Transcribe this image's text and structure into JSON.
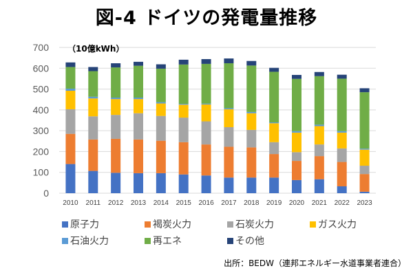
{
  "title": "図-4 ドイツの発電量推移",
  "source": "出所：BEDW（連邦エネルギー水道事業者連合）",
  "chart_data": {
    "type": "bar",
    "stacked": true,
    "title": "図-4 ドイツの発電量推移",
    "unit_label": "（10億kWh）",
    "xlabel": "",
    "ylabel": "（10億kWh）",
    "ylim": [
      0,
      700
    ],
    "yticks": [
      0,
      100,
      200,
      300,
      400,
      500,
      600,
      700
    ],
    "grid": true,
    "legend_position": "bottom",
    "categories": [
      "2010",
      "2011",
      "2012",
      "2013",
      "2014",
      "2015",
      "2016",
      "2017",
      "2018",
      "2019",
      "2020",
      "2021",
      "2022",
      "2023"
    ],
    "series": [
      {
        "name": "原子力",
        "color": "#4472C4",
        "values": [
          140,
          107,
          98,
          96,
          96,
          90,
          85,
          75,
          75,
          75,
          63,
          67,
          33,
          7
        ]
      },
      {
        "name": "褐炭火力",
        "color": "#ED7D31",
        "values": [
          145,
          151,
          163,
          162,
          156,
          155,
          149,
          148,
          145,
          113,
          92,
          111,
          117,
          85
        ]
      },
      {
        "name": "石炭火力",
        "color": "#A5A5A5",
        "values": [
          118,
          111,
          115,
          126,
          119,
          118,
          111,
          94,
          84,
          57,
          42,
          56,
          65,
          40
        ]
      },
      {
        "name": "ガス火力",
        "color": "#FFC000",
        "values": [
          89,
          86,
          76,
          68,
          60,
          62,
          81,
          86,
          80,
          91,
          94,
          88,
          76,
          77
        ]
      },
      {
        "name": "石油火力",
        "color": "#5B9BD5",
        "values": [
          10,
          8,
          7,
          7,
          6,
          4,
          4,
          5,
          6,
          4,
          7,
          7,
          7,
          5
        ]
      },
      {
        "name": "再エネ",
        "color": "#70AD47",
        "values": [
          104,
          123,
          145,
          153,
          161,
          189,
          191,
          216,
          223,
          243,
          251,
          233,
          252,
          271
        ]
      },
      {
        "name": "その他",
        "color": "#264478",
        "values": [
          22,
          20,
          20,
          19,
          21,
          23,
          23,
          23,
          22,
          19,
          19,
          20,
          19,
          19
        ]
      }
    ]
  }
}
